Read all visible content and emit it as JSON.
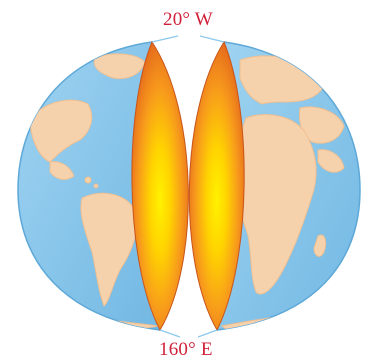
{
  "labels": {
    "top_meridian": "20° W",
    "bottom_meridian": "160° E"
  },
  "colors": {
    "label": "#d1213a",
    "ocean": "#8cc9ec",
    "ocean_edge": "#5ea8d8",
    "land": "#f6d2ac",
    "land_edge": "#eebf92",
    "section_core": "#ffe100",
    "section_mid": "#f7a21b",
    "section_edge": "#e2611c",
    "background": "#ffffff"
  },
  "icons": {
    "globe": "split-globe-icon"
  }
}
